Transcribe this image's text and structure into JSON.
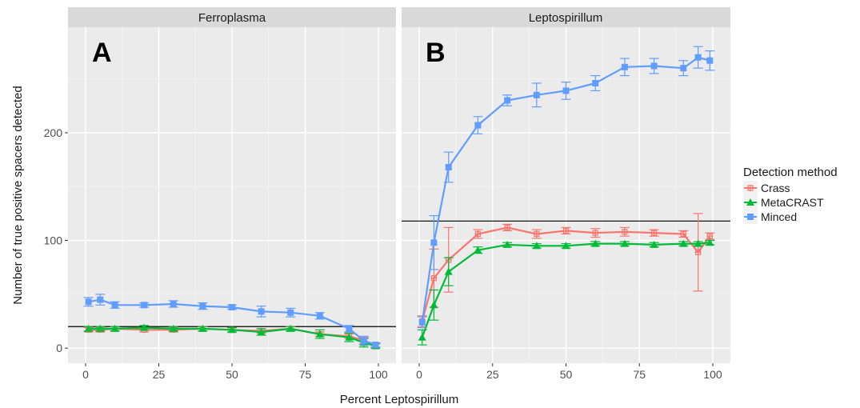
{
  "chart_data": {
    "type": "line",
    "xlabel": "Percent Leptospirillum",
    "ylabel": "Number of true positive spacers detected",
    "xlim": [
      -6,
      106
    ],
    "ylim": [
      -14,
      298
    ],
    "x_ticks": [
      0,
      25,
      50,
      75,
      100
    ],
    "x_tick_labels": [
      "0",
      "25",
      "50",
      "75",
      "100"
    ],
    "y_ticks": [
      0,
      100,
      200
    ],
    "y_tick_labels": [
      "0",
      "100",
      "200"
    ],
    "grid": true,
    "legend": {
      "title": "Detection method",
      "placement": "right",
      "entries": [
        "Crass",
        "MetaCRAST",
        "Minced"
      ]
    },
    "colors": {
      "Crass": "#F8766D",
      "MetaCRAST": "#00BA38",
      "Minced": "#619CFF",
      "panel_bg": "#EBEBEB",
      "strip_bg": "#D9D9D9"
    },
    "panels": [
      {
        "strip": "Ferroplasma",
        "letter": "A",
        "hline": 20,
        "series": [
          {
            "name": "Crass",
            "x": [
              1,
              5,
              10,
              20,
              30,
              40,
              50,
              60,
              70,
              80,
              90,
              95,
              99
            ],
            "y": [
              17,
              17,
              18,
              17,
              17,
              18,
              17,
              16,
              18,
              13,
              11,
              7,
              3
            ],
            "err": [
              2,
              2,
              2,
              2,
              2,
              2,
              2,
              2,
              2,
              2,
              2,
              3,
              2
            ]
          },
          {
            "name": "MetaCRAST",
            "x": [
              1,
              5,
              10,
              20,
              30,
              40,
              50,
              60,
              70,
              80,
              90,
              95,
              99
            ],
            "y": [
              18,
              18,
              18,
              19,
              18,
              18,
              17,
              15,
              18,
              13,
              10,
              5,
              2
            ],
            "err": [
              2,
              2,
              2,
              2,
              2,
              2,
              2,
              3,
              2,
              4,
              4,
              4,
              2
            ]
          },
          {
            "name": "Minced",
            "x": [
              1,
              5,
              10,
              20,
              30,
              40,
              50,
              60,
              70,
              80,
              90,
              95,
              99
            ],
            "y": [
              43,
              45,
              40,
              40,
              41,
              39,
              38,
              34,
              33,
              30,
              18,
              7,
              3
            ],
            "err": [
              4,
              5,
              3,
              2,
              3,
              3,
              2,
              5,
              4,
              3,
              3,
              4,
              2
            ]
          }
        ]
      },
      {
        "strip": "Leptospirillum",
        "letter": "B",
        "hline": 118,
        "series": [
          {
            "name": "Crass",
            "x": [
              1,
              5,
              10,
              20,
              30,
              40,
              50,
              60,
              70,
              80,
              90,
              95,
              99
            ],
            "y": [
              25,
              65,
              82,
              106,
              112,
              106,
              109,
              107,
              108,
              107,
              106,
              89,
              104
            ],
            "err": [
              5,
              27,
              30,
              4,
              3,
              4,
              3,
              4,
              4,
              3,
              3,
              36,
              3
            ]
          },
          {
            "name": "MetaCRAST",
            "x": [
              1,
              5,
              10,
              20,
              30,
              40,
              50,
              60,
              70,
              80,
              90,
              95,
              99
            ],
            "y": [
              10,
              40,
              71,
              91,
              96,
              95,
              95,
              97,
              97,
              96,
              97,
              97,
              98
            ],
            "err": [
              7,
              14,
              13,
              3,
              2,
              2,
              2,
              2,
              2,
              2,
              2,
              2,
              2
            ]
          },
          {
            "name": "Minced",
            "x": [
              1,
              5,
              10,
              20,
              30,
              40,
              50,
              60,
              70,
              80,
              90,
              95,
              99
            ],
            "y": [
              24,
              98,
              168,
              207,
              230,
              235,
              239,
              246,
              261,
              262,
              260,
              270,
              267
            ],
            "err": [
              5,
              25,
              14,
              8,
              5,
              11,
              8,
              7,
              8,
              7,
              7,
              10,
              9
            ]
          }
        ]
      }
    ]
  }
}
